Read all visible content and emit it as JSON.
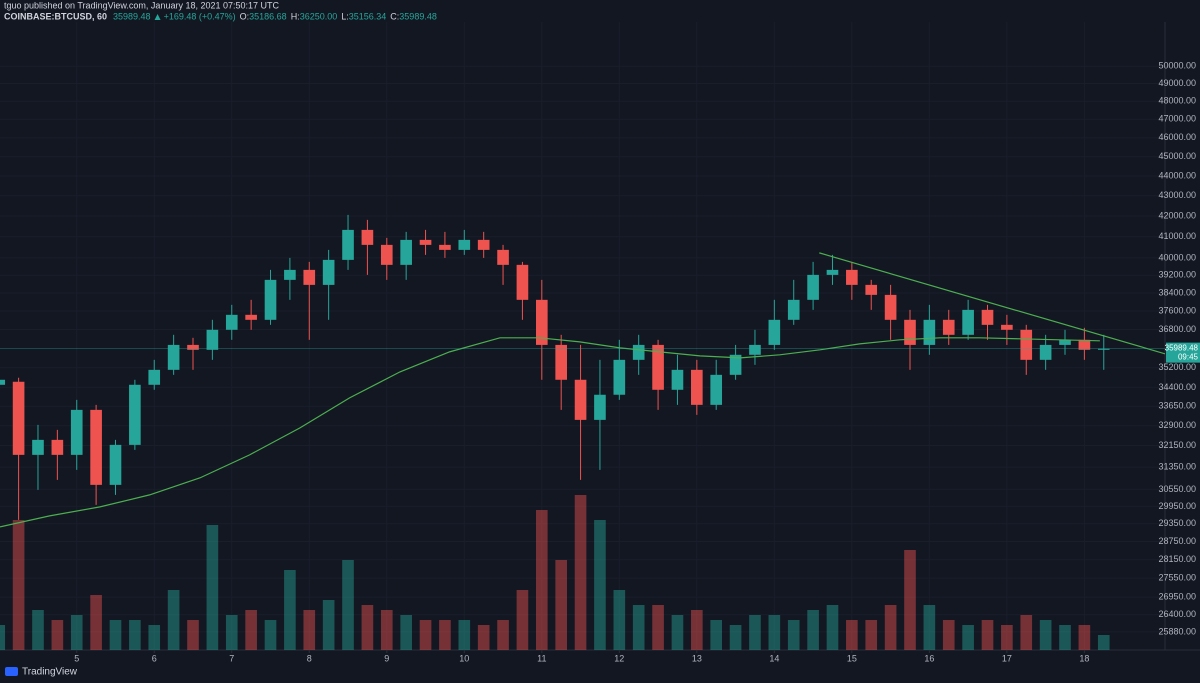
{
  "header": {
    "publisher": "tguo published on TradingView.com, January 18, 2021 07:50:17 UTC",
    "symbol": "COINBASE:BTCUSD, 60",
    "last": "35989.48",
    "change": "+169.48 (+0.47%)",
    "ohlc": [
      {
        "label": "O:",
        "value": "35186.68"
      },
      {
        "label": "H:",
        "value": "36250.00"
      },
      {
        "label": "L:",
        "value": "35156.34"
      },
      {
        "label": "C:",
        "value": "35989.48"
      }
    ]
  },
  "brand": "TradingView",
  "chart_data": {
    "type": "candlestick",
    "log_scale": true,
    "up_color": "#26a69a",
    "down_color": "#ef5350",
    "x": [
      4.0,
      4.25,
      4.5,
      4.75,
      5.0,
      5.25,
      5.5,
      5.75,
      6.0,
      6.25,
      6.5,
      6.75,
      7.0,
      7.25,
      7.5,
      7.75,
      8.0,
      8.25,
      8.5,
      8.75,
      9.0,
      9.25,
      9.5,
      9.75,
      10.0,
      10.25,
      10.5,
      10.75,
      11.0,
      11.25,
      11.5,
      11.75,
      12.0,
      12.25,
      12.5,
      12.75,
      13.0,
      13.25,
      13.5,
      13.75,
      14.0,
      14.25,
      14.5,
      14.75,
      15.0,
      15.25,
      15.5,
      15.75,
      16.0,
      16.25,
      16.5,
      16.75,
      17.0,
      17.25,
      17.5,
      17.75,
      18.0,
      18.25
    ],
    "open": [
      34506,
      34628,
      31803,
      32363,
      31803,
      33513,
      30711,
      32175,
      34506,
      35112,
      36146,
      35940,
      36787,
      37434,
      37217,
      38989,
      39445,
      38762,
      39907,
      41325,
      40610,
      39676,
      40847,
      40610,
      40374,
      40847,
      40374,
      39676,
      38093,
      36146,
      34708,
      33125,
      34108,
      35523,
      36146,
      34306,
      35112,
      33709,
      34908,
      35732,
      36146,
      37217,
      38093,
      39216,
      39445,
      38762,
      38314,
      37217,
      36146,
      37217,
      36573,
      37651,
      37000,
      36787,
      35523,
      36146,
      36360,
      35940
    ],
    "high": [
      34790,
      34790,
      32933,
      32742,
      33906,
      33709,
      32363,
      34708,
      35523,
      36573,
      36445,
      37217,
      37872,
      38093,
      39445,
      40000,
      39814,
      40374,
      42053,
      41809,
      40942,
      41229,
      41325,
      41229,
      41325,
      41229,
      40610,
      39814,
      38989,
      36573,
      36146,
      35523,
      36360,
      36573,
      36360,
      35732,
      35523,
      35523,
      36146,
      36787,
      38093,
      38989,
      39814,
      40140,
      39814,
      38989,
      38762,
      37651,
      37872,
      37651,
      38093,
      37872,
      37434,
      37000,
      36573,
      36787,
      36872,
      36573
    ],
    "low": [
      34108,
      29485,
      30533,
      30890,
      31252,
      30004,
      30355,
      31988,
      34306,
      34908,
      35112,
      35523,
      36360,
      36787,
      37000,
      38093,
      36360,
      37217,
      39445,
      39216,
      38989,
      38989,
      40140,
      40000,
      40140,
      40000,
      38762,
      37217,
      34708,
      33513,
      30890,
      31252,
      33906,
      34908,
      33513,
      33709,
      33319,
      33513,
      34708,
      35317,
      35940,
      37000,
      37651,
      38762,
      38093,
      37651,
      36360,
      35112,
      35732,
      36146,
      36360,
      36360,
      36146,
      34908,
      35112,
      35732,
      35523,
      35112
    ],
    "close": [
      34708,
      31803,
      32363,
      31803,
      33513,
      30711,
      32175,
      34506,
      35112,
      36146,
      35940,
      36787,
      37434,
      37217,
      38989,
      39445,
      38762,
      39907,
      41325,
      40610,
      39676,
      40847,
      40610,
      40374,
      40847,
      40374,
      39676,
      38093,
      36146,
      34708,
      33125,
      34108,
      35523,
      36146,
      34306,
      35112,
      33709,
      34908,
      35732,
      36146,
      37217,
      38093,
      39216,
      39445,
      38762,
      38314,
      37217,
      36146,
      37217,
      36573,
      37651,
      37000,
      36787,
      35523,
      36146,
      36360,
      35940,
      35989.48
    ],
    "volume": [
      25,
      130,
      40,
      30,
      35,
      55,
      30,
      30,
      25,
      60,
      30,
      125,
      35,
      40,
      30,
      80,
      40,
      50,
      90,
      45,
      40,
      35,
      30,
      30,
      30,
      25,
      30,
      60,
      140,
      90,
      155,
      130,
      60,
      45,
      45,
      35,
      40,
      30,
      25,
      35,
      35,
      30,
      40,
      45,
      30,
      30,
      45,
      100,
      45,
      30,
      25,
      30,
      25,
      35,
      30,
      25,
      25,
      15
    ],
    "volume_lim": [
      0,
      628
    ],
    "moving_average": {
      "color": "#4caf50",
      "x": [
        4.01,
        4.65,
        5.3,
        5.94,
        6.59,
        7.23,
        7.88,
        8.52,
        9.17,
        9.81,
        10.46,
        10.97,
        11.49,
        12.01,
        12.52,
        13.04,
        13.56,
        14.07,
        14.59,
        15.1,
        15.62,
        16.14,
        16.65,
        17.17,
        17.68,
        18.2
      ],
      "values": [
        29246,
        29622,
        29934,
        30355,
        30962,
        31803,
        32818,
        33985,
        35028,
        35854,
        36445,
        36445,
        36274,
        36021,
        35854,
        35688,
        35605,
        35732,
        35940,
        36189,
        36360,
        36445,
        36445,
        36403,
        36360,
        36318
      ]
    },
    "trendline": {
      "color": "#4caf50",
      "x": [
        14.58,
        19.04
      ],
      "values": [
        40234,
        35773
      ]
    },
    "countdown": "09:45",
    "xlim": [
      4.01,
      19.04
    ],
    "xticks": [
      5,
      6,
      7,
      8,
      9,
      10,
      11,
      12,
      13,
      14,
      15,
      16,
      17,
      18
    ],
    "ylim": [
      25340,
      52640
    ],
    "yticks": [
      {
        "value": 50000,
        "label": "50000.00"
      },
      {
        "value": 49000,
        "label": "49000.00"
      },
      {
        "value": 48000,
        "label": "48000.00"
      },
      {
        "value": 47000,
        "label": "47000.00"
      },
      {
        "value": 46000,
        "label": "46000.00"
      },
      {
        "value": 45000,
        "label": "45000.00"
      },
      {
        "value": 44000,
        "label": "44000.00"
      },
      {
        "value": 43000,
        "label": "43000.00"
      },
      {
        "value": 42000,
        "label": "42000.00"
      },
      {
        "value": 41000,
        "label": "41000.00"
      },
      {
        "value": 40000,
        "label": "40000.00"
      },
      {
        "value": 39200,
        "label": "39200.00"
      },
      {
        "value": 38400,
        "label": "38400.00"
      },
      {
        "value": 37600,
        "label": "37600.00"
      },
      {
        "value": 36800,
        "label": "36800.00"
      },
      {
        "value": 35200,
        "label": "35200.00"
      },
      {
        "value": 34400,
        "label": "34400.00"
      },
      {
        "value": 33650,
        "label": "33650.00"
      },
      {
        "value": 32900,
        "label": "32900.00"
      },
      {
        "value": 32150,
        "label": "32150.00"
      },
      {
        "value": 31350,
        "label": "31350.00"
      },
      {
        "value": 30550,
        "label": "30550.00"
      },
      {
        "value": 29950,
        "label": "29950.00"
      },
      {
        "value": 29350,
        "label": "29350.00"
      },
      {
        "value": 28750,
        "label": "28750.00"
      },
      {
        "value": 28150,
        "label": "28150.00"
      },
      {
        "value": 27550,
        "label": "27550.00"
      },
      {
        "value": 26950,
        "label": "26950.00"
      },
      {
        "value": 26400,
        "label": "26400.00"
      },
      {
        "value": 25880,
        "label": "25880.00"
      }
    ],
    "grid": true
  }
}
